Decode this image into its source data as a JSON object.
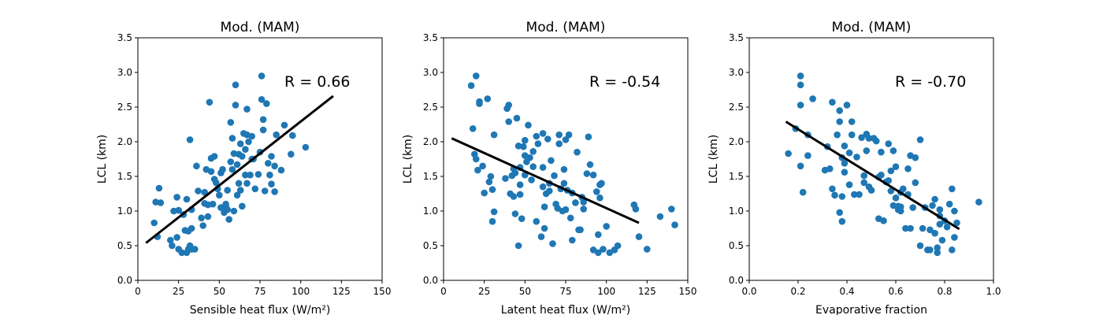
{
  "colors": {
    "points": "#1f77b4",
    "fit_line": "#000000",
    "background": "#ffffff"
  },
  "chart_data": [
    {
      "type": "scatter",
      "title": "Mod. (MAM)",
      "xlabel": "Sensible heat flux (W/m²)",
      "ylabel": "LCL (km)",
      "xlim": [
        0,
        150
      ],
      "ylim": [
        0,
        3.5
      ],
      "xticks": [
        0,
        25,
        50,
        75,
        100,
        125,
        150
      ],
      "yticks": [
        0.0,
        0.5,
        1.0,
        1.5,
        2.0,
        2.5,
        3.0,
        3.5
      ],
      "xtick_labels": [
        "0",
        "25",
        "50",
        "75",
        "100",
        "125",
        "150"
      ],
      "ytick_labels": [
        "0.0",
        "0.5",
        "1.0",
        "1.5",
        "2.0",
        "2.5",
        "3.0",
        "3.5"
      ],
      "annotation": "R = 0.66",
      "fit_line": {
        "x": [
          5,
          120
        ],
        "y": [
          0.54,
          2.66
        ]
      },
      "points": [
        [
          10,
          0.83
        ],
        [
          11,
          1.13
        ],
        [
          12,
          0.63
        ],
        [
          13,
          1.33
        ],
        [
          14,
          1.12
        ],
        [
          20,
          0.58
        ],
        [
          21,
          0.5
        ],
        [
          22,
          1.0
        ],
        [
          24,
          0.62
        ],
        [
          24,
          1.2
        ],
        [
          25,
          1.01
        ],
        [
          25,
          0.45
        ],
        [
          27,
          0.4
        ],
        [
          28,
          0.95
        ],
        [
          29,
          0.72
        ],
        [
          30,
          1.17
        ],
        [
          30,
          0.4
        ],
        [
          31,
          0.45
        ],
        [
          31,
          0.71
        ],
        [
          32,
          2.03
        ],
        [
          32,
          0.5
        ],
        [
          33,
          0.75
        ],
        [
          33,
          1.02
        ],
        [
          33,
          0.45
        ],
        [
          35,
          0.45
        ],
        [
          36,
          1.65
        ],
        [
          37,
          1.29
        ],
        [
          39,
          0.9
        ],
        [
          40,
          0.79
        ],
        [
          41,
          1.11
        ],
        [
          41,
          1.27
        ],
        [
          42,
          1.6
        ],
        [
          43,
          1.09
        ],
        [
          43,
          0.92
        ],
        [
          44,
          2.57
        ],
        [
          45,
          1.76
        ],
        [
          45,
          1.57
        ],
        [
          46,
          1.1
        ],
        [
          47,
          1.46
        ],
        [
          47,
          1.79
        ],
        [
          48,
          1.41
        ],
        [
          49,
          1.32
        ],
        [
          50,
          1.23
        ],
        [
          51,
          1.05
        ],
        [
          51,
          1.55
        ],
        [
          52,
          1.6
        ],
        [
          53,
          0.98
        ],
        [
          54,
          1.1
        ],
        [
          54,
          1.07
        ],
        [
          55,
          1.02
        ],
        [
          55,
          1.3
        ],
        [
          56,
          0.88
        ],
        [
          57,
          2.28
        ],
        [
          57,
          1.71
        ],
        [
          58,
          2.05
        ],
        [
          58,
          1.6
        ],
        [
          59,
          1.83
        ],
        [
          59,
          1.0
        ],
        [
          60,
          2.53
        ],
        [
          60,
          2.82
        ],
        [
          61,
          1.23
        ],
        [
          61,
          1.67
        ],
        [
          62,
          1.82
        ],
        [
          62,
          1.4
        ],
        [
          63,
          1.3
        ],
        [
          63,
          1.97
        ],
        [
          64,
          1.79
        ],
        [
          64,
          1.07
        ],
        [
          65,
          2.12
        ],
        [
          66,
          1.52
        ],
        [
          66,
          1.89
        ],
        [
          67,
          2.47
        ],
        [
          67,
          2.1
        ],
        [
          67,
          1.4
        ],
        [
          68,
          2.0
        ],
        [
          69,
          1.52
        ],
        [
          70,
          1.75
        ],
        [
          70,
          2.08
        ],
        [
          71,
          1.75
        ],
        [
          72,
          1.32
        ],
        [
          74,
          1.53
        ],
        [
          75,
          1.85
        ],
        [
          76,
          2.95
        ],
        [
          76,
          2.61
        ],
        [
          77,
          2.32
        ],
        [
          77,
          2.17
        ],
        [
          78,
          1.29
        ],
        [
          79,
          2.55
        ],
        [
          80,
          1.69
        ],
        [
          81,
          1.52
        ],
        [
          82,
          1.39
        ],
        [
          82,
          1.79
        ],
        [
          84,
          1.28
        ],
        [
          84,
          1.65
        ],
        [
          85,
          2.1
        ],
        [
          88,
          1.59
        ],
        [
          90,
          2.24
        ],
        [
          94,
          1.82
        ],
        [
          95,
          2.09
        ],
        [
          103,
          1.92
        ]
      ]
    },
    {
      "type": "scatter",
      "title": "Mod. (MAM)",
      "xlabel": "Latent heat flux (W/m²)",
      "ylabel": "LCL (km)",
      "xlim": [
        0,
        150
      ],
      "ylim": [
        0,
        3.5
      ],
      "xticks": [
        0,
        25,
        50,
        75,
        100,
        125,
        150
      ],
      "yticks": [
        0.0,
        0.5,
        1.0,
        1.5,
        2.0,
        2.5,
        3.0,
        3.5
      ],
      "xtick_labels": [
        "0",
        "25",
        "50",
        "75",
        "100",
        "125",
        "150"
      ],
      "ytick_labels": [
        "0.0",
        "0.5",
        "1.0",
        "1.5",
        "2.0",
        "2.5",
        "3.0",
        "3.5"
      ],
      "annotation": "R = -0.54",
      "fit_line": {
        "x": [
          5,
          120
        ],
        "y": [
          2.05,
          0.83
        ]
      },
      "points": [
        [
          17,
          2.81
        ],
        [
          18,
          2.19
        ],
        [
          19,
          1.82
        ],
        [
          20,
          2.95
        ],
        [
          20,
          1.75
        ],
        [
          21,
          1.59
        ],
        [
          22,
          2.55
        ],
        [
          22,
          2.58
        ],
        [
          24,
          1.65
        ],
        [
          25,
          1.26
        ],
        [
          27,
          2.62
        ],
        [
          28,
          1.42
        ],
        [
          29,
          1.5
        ],
        [
          30,
          0.85
        ],
        [
          30,
          1.31
        ],
        [
          31,
          0.99
        ],
        [
          31,
          2.1
        ],
        [
          38,
          1.47
        ],
        [
          39,
          2.48
        ],
        [
          40,
          2.29
        ],
        [
          40,
          2.53
        ],
        [
          41,
          1.25
        ],
        [
          42,
          1.51
        ],
        [
          43,
          1.21
        ],
        [
          43,
          1.61
        ],
        [
          44,
          0.96
        ],
        [
          44,
          1.55
        ],
        [
          45,
          2.34
        ],
        [
          46,
          1.94
        ],
        [
          46,
          0.5
        ],
        [
          47,
          1.63
        ],
        [
          47,
          1.38
        ],
        [
          47,
          1.24
        ],
        [
          48,
          0.89
        ],
        [
          49,
          1.93
        ],
        [
          50,
          2.02
        ],
        [
          50,
          1.52
        ],
        [
          50,
          1.8
        ],
        [
          51,
          1.71
        ],
        [
          52,
          2.24
        ],
        [
          53,
          1.77
        ],
        [
          54,
          1.45
        ],
        [
          55,
          1.86
        ],
        [
          55,
          1.64
        ],
        [
          57,
          2.08
        ],
        [
          57,
          0.85
        ],
        [
          58,
          1.97
        ],
        [
          60,
          0.63
        ],
        [
          61,
          1.35
        ],
        [
          61,
          2.12
        ],
        [
          61,
          1.63
        ],
        [
          62,
          1.06
        ],
        [
          62,
          0.75
        ],
        [
          63,
          1.25
        ],
        [
          64,
          2.04
        ],
        [
          65,
          1.29
        ],
        [
          65,
          1.4
        ],
        [
          66,
          1.73
        ],
        [
          67,
          0.53
        ],
        [
          68,
          1.51
        ],
        [
          69,
          1.1
        ],
        [
          70,
          1.04
        ],
        [
          71,
          1.97
        ],
        [
          71,
          2.1
        ],
        [
          72,
          1.32
        ],
        [
          73,
          1.0
        ],
        [
          74,
          1.6
        ],
        [
          74,
          1.4
        ],
        [
          75,
          2.03
        ],
        [
          75,
          1.02
        ],
        [
          76,
          1.3
        ],
        [
          77,
          2.1
        ],
        [
          78,
          0.9
        ],
        [
          79,
          1.26
        ],
        [
          79,
          0.58
        ],
        [
          81,
          1.12
        ],
        [
          82,
          1.85
        ],
        [
          83,
          0.73
        ],
        [
          84,
          0.73
        ],
        [
          85,
          1.2
        ],
        [
          86,
          1.13
        ],
        [
          86,
          1.03
        ],
        [
          88,
          1.54
        ],
        [
          89,
          2.07
        ],
        [
          90,
          1.67
        ],
        [
          92,
          0.44
        ],
        [
          92,
          1.52
        ],
        [
          94,
          1.28
        ],
        [
          95,
          0.66
        ],
        [
          95,
          0.4
        ],
        [
          96,
          1.38
        ],
        [
          96,
          1.19
        ],
        [
          97,
          1.4
        ],
        [
          98,
          0.45
        ],
        [
          100,
          0.78
        ],
        [
          102,
          0.4
        ],
        [
          105,
          0.44
        ],
        [
          107,
          0.5
        ],
        [
          117,
          1.09
        ],
        [
          118,
          1.03
        ],
        [
          120,
          0.63
        ],
        [
          125,
          0.45
        ],
        [
          133,
          0.92
        ],
        [
          140,
          1.03
        ],
        [
          142,
          0.8
        ]
      ]
    },
    {
      "type": "scatter",
      "title": "Mod. (MAM)",
      "xlabel": "Evaporative fraction",
      "ylabel": "LCL (km)",
      "xlim": [
        0,
        1.0
      ],
      "ylim": [
        0,
        3.5
      ],
      "xticks": [
        0.0,
        0.2,
        0.4,
        0.6,
        0.8,
        1.0
      ],
      "yticks": [
        0.0,
        0.5,
        1.0,
        1.5,
        2.0,
        2.5,
        3.0,
        3.5
      ],
      "xtick_labels": [
        "0.0",
        "0.2",
        "0.4",
        "0.6",
        "0.8",
        "1.0"
      ],
      "ytick_labels": [
        "0.0",
        "0.5",
        "1.0",
        "1.5",
        "2.0",
        "2.5",
        "3.0",
        "3.5"
      ],
      "annotation": "R = -0.70",
      "fit_line": {
        "x": [
          0.15,
          0.86
        ],
        "y": [
          2.29,
          0.74
        ]
      },
      "points": [
        [
          0.16,
          1.83
        ],
        [
          0.19,
          2.19
        ],
        [
          0.21,
          2.95
        ],
        [
          0.21,
          2.82
        ],
        [
          0.21,
          2.53
        ],
        [
          0.21,
          1.65
        ],
        [
          0.22,
          1.27
        ],
        [
          0.24,
          1.8
        ],
        [
          0.24,
          2.1
        ],
        [
          0.26,
          2.62
        ],
        [
          0.31,
          1.59
        ],
        [
          0.32,
          1.93
        ],
        [
          0.33,
          1.61
        ],
        [
          0.34,
          2.57
        ],
        [
          0.34,
          1.32
        ],
        [
          0.35,
          1.23
        ],
        [
          0.36,
          2.1
        ],
        [
          0.37,
          2.29
        ],
        [
          0.37,
          2.45
        ],
        [
          0.37,
          0.98
        ],
        [
          0.38,
          1.77
        ],
        [
          0.38,
          1.21
        ],
        [
          0.38,
          0.85
        ],
        [
          0.39,
          1.69
        ],
        [
          0.39,
          1.56
        ],
        [
          0.39,
          1.94
        ],
        [
          0.4,
          2.53
        ],
        [
          0.41,
          1.38
        ],
        [
          0.41,
          1.84
        ],
        [
          0.42,
          2.29
        ],
        [
          0.42,
          2.1
        ],
        [
          0.43,
          1.24
        ],
        [
          0.44,
          1.78
        ],
        [
          0.45,
          1.24
        ],
        [
          0.46,
          2.06
        ],
        [
          0.47,
          1.51
        ],
        [
          0.47,
          1.41
        ],
        [
          0.48,
          2.11
        ],
        [
          0.48,
          1.87
        ],
        [
          0.49,
          2.05
        ],
        [
          0.49,
          1.35
        ],
        [
          0.5,
          1.3
        ],
        [
          0.51,
          2.05
        ],
        [
          0.52,
          2.01
        ],
        [
          0.53,
          1.49
        ],
        [
          0.53,
          0.89
        ],
        [
          0.54,
          1.85
        ],
        [
          0.54,
          1.52
        ],
        [
          0.55,
          0.86
        ],
        [
          0.56,
          1.42
        ],
        [
          0.57,
          1.44
        ],
        [
          0.57,
          1.97
        ],
        [
          0.58,
          1.29
        ],
        [
          0.58,
          1.58
        ],
        [
          0.59,
          1.08
        ],
        [
          0.59,
          1.87
        ],
        [
          0.6,
          1.64
        ],
        [
          0.6,
          1.19
        ],
        [
          0.61,
          1.07
        ],
        [
          0.61,
          1.02
        ],
        [
          0.62,
          1.0
        ],
        [
          0.62,
          1.06
        ],
        [
          0.62,
          1.27
        ],
        [
          0.63,
          1.32
        ],
        [
          0.64,
          0.75
        ],
        [
          0.65,
          1.61
        ],
        [
          0.65,
          1.24
        ],
        [
          0.66,
          1.8
        ],
        [
          0.66,
          0.75
        ],
        [
          0.67,
          1.05
        ],
        [
          0.68,
          1.77
        ],
        [
          0.68,
          1.41
        ],
        [
          0.7,
          0.5
        ],
        [
          0.7,
          2.03
        ],
        [
          0.71,
          0.75
        ],
        [
          0.72,
          1.05
        ],
        [
          0.73,
          0.44
        ],
        [
          0.74,
          0.44
        ],
        [
          0.74,
          0.73
        ],
        [
          0.75,
          1.08
        ],
        [
          0.76,
          0.68
        ],
        [
          0.76,
          1.17
        ],
        [
          0.77,
          0.4
        ],
        [
          0.77,
          0.47
        ],
        [
          0.78,
          0.81
        ],
        [
          0.78,
          0.93
        ],
        [
          0.78,
          1.02
        ],
        [
          0.79,
          0.58
        ],
        [
          0.8,
          0.86
        ],
        [
          0.81,
          0.77
        ],
        [
          0.82,
          1.1
        ],
        [
          0.83,
          1.32
        ],
        [
          0.83,
          0.44
        ],
        [
          0.84,
          0.62
        ],
        [
          0.84,
          1.0
        ],
        [
          0.85,
          0.83
        ],
        [
          0.94,
          1.13
        ]
      ]
    }
  ]
}
